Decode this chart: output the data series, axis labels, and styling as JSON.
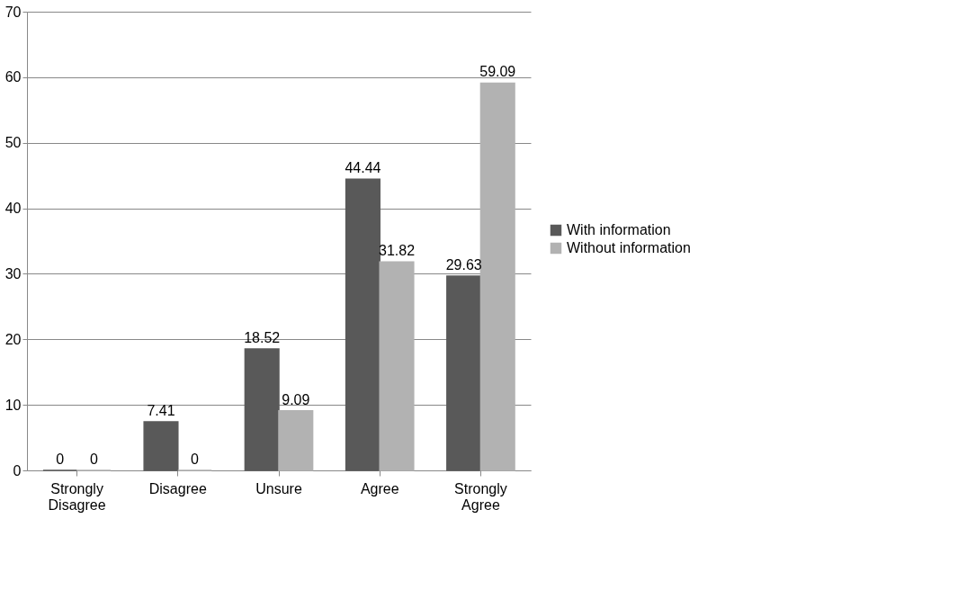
{
  "chart_data": {
    "type": "bar",
    "categories": [
      "Strongly Disagree",
      "Disagree",
      "Unsure",
      "Agree",
      "Strongly Agree"
    ],
    "series": [
      {
        "name": "With information",
        "color": "#595959",
        "values": [
          0,
          7.41,
          18.52,
          44.44,
          29.63
        ]
      },
      {
        "name": "Without information",
        "color": "#b2b2b2",
        "values": [
          0,
          0,
          9.09,
          31.82,
          59.09
        ]
      }
    ],
    "ylim": [
      0,
      70
    ],
    "yticks": [
      0,
      10,
      20,
      30,
      40,
      50,
      60,
      70
    ],
    "grid": "y",
    "legend": "right",
    "data_labels": true
  }
}
